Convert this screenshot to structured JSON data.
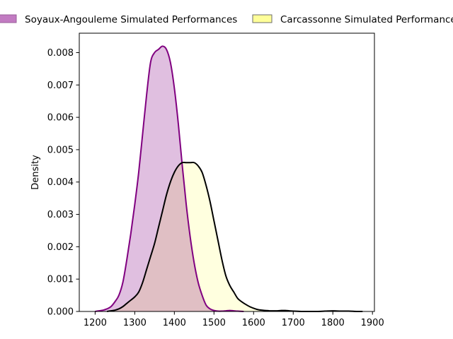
{
  "chart_data": {
    "type": "area",
    "title": "",
    "xlabel": "",
    "ylabel": "Density",
    "xlim": [
      1160,
      1905
    ],
    "ylim": [
      0,
      0.0086
    ],
    "xticks": [
      1200,
      1300,
      1400,
      1500,
      1600,
      1700,
      1800,
      1900
    ],
    "yticks": [
      0.0,
      0.001,
      0.002,
      0.003,
      0.004,
      0.005,
      0.006,
      0.007,
      0.008
    ],
    "grid": false,
    "legend": "top, outside plot, horizontal",
    "series": [
      {
        "name": "Soyaux-Angouleme Simulated Performances",
        "fill": "#E0BFE0",
        "line": "#800080",
        "points": [
          [
            1200,
            0
          ],
          [
            1210,
            2e-05
          ],
          [
            1220,
            4e-05
          ],
          [
            1230,
            8e-05
          ],
          [
            1240,
            0.00015
          ],
          [
            1250,
            0.0003
          ],
          [
            1260,
            0.0005
          ],
          [
            1270,
            0.0009
          ],
          [
            1280,
            0.0016
          ],
          [
            1290,
            0.0024
          ],
          [
            1300,
            0.0033
          ],
          [
            1310,
            0.0043
          ],
          [
            1320,
            0.0055
          ],
          [
            1330,
            0.0067
          ],
          [
            1340,
            0.0077
          ],
          [
            1350,
            0.008
          ],
          [
            1360,
            0.0081
          ],
          [
            1370,
            0.0082
          ],
          [
            1380,
            0.0081
          ],
          [
            1390,
            0.0077
          ],
          [
            1400,
            0.0069
          ],
          [
            1410,
            0.0058
          ],
          [
            1420,
            0.0045
          ],
          [
            1430,
            0.0033
          ],
          [
            1440,
            0.0023
          ],
          [
            1450,
            0.0015
          ],
          [
            1460,
            0.0009
          ],
          [
            1470,
            0.0005
          ],
          [
            1480,
            0.0002
          ],
          [
            1490,
            8e-05
          ],
          [
            1500,
            3e-05
          ],
          [
            1510,
            1e-05
          ],
          [
            1520,
            1e-05
          ],
          [
            1530,
            2e-05
          ],
          [
            1540,
            3e-05
          ],
          [
            1550,
            2e-05
          ],
          [
            1560,
            1e-05
          ],
          [
            1575,
            0
          ]
        ]
      },
      {
        "name": "Carcassonne Simulated Performances",
        "fill": "#FFFFBF",
        "line": "#000000",
        "points": [
          [
            1230,
            0
          ],
          [
            1240,
            2e-05
          ],
          [
            1250,
            4e-05
          ],
          [
            1260,
            8e-05
          ],
          [
            1270,
            0.00015
          ],
          [
            1280,
            0.00025
          ],
          [
            1290,
            0.00035
          ],
          [
            1300,
            0.00045
          ],
          [
            1310,
            0.0006
          ],
          [
            1320,
            0.0009
          ],
          [
            1330,
            0.0013
          ],
          [
            1340,
            0.0017
          ],
          [
            1350,
            0.0021
          ],
          [
            1360,
            0.0026
          ],
          [
            1370,
            0.0031
          ],
          [
            1380,
            0.0036
          ],
          [
            1390,
            0.004
          ],
          [
            1400,
            0.0043
          ],
          [
            1410,
            0.0045
          ],
          [
            1420,
            0.0046
          ],
          [
            1430,
            0.0046
          ],
          [
            1440,
            0.0046
          ],
          [
            1450,
            0.0046
          ],
          [
            1460,
            0.0045
          ],
          [
            1470,
            0.0043
          ],
          [
            1480,
            0.0039
          ],
          [
            1490,
            0.0034
          ],
          [
            1500,
            0.0028
          ],
          [
            1510,
            0.0022
          ],
          [
            1520,
            0.0016
          ],
          [
            1530,
            0.0011
          ],
          [
            1540,
            0.0008
          ],
          [
            1550,
            0.0006
          ],
          [
            1560,
            0.0004
          ],
          [
            1570,
            0.0003
          ],
          [
            1580,
            0.00022
          ],
          [
            1590,
            0.00015
          ],
          [
            1600,
            0.0001
          ],
          [
            1610,
            6e-05
          ],
          [
            1620,
            4e-05
          ],
          [
            1630,
            3e-05
          ],
          [
            1640,
            2e-05
          ],
          [
            1650,
            2e-05
          ],
          [
            1660,
            2e-05
          ],
          [
            1670,
            3e-05
          ],
          [
            1680,
            3e-05
          ],
          [
            1690,
            2e-05
          ],
          [
            1700,
            1e-05
          ],
          [
            1720,
            0
          ],
          [
            1740,
            0
          ],
          [
            1760,
            0
          ],
          [
            1780,
            1e-05
          ],
          [
            1800,
            2e-05
          ],
          [
            1820,
            1e-05
          ],
          [
            1840,
            1e-05
          ],
          [
            1860,
            0
          ],
          [
            1875,
            0
          ]
        ]
      }
    ]
  }
}
